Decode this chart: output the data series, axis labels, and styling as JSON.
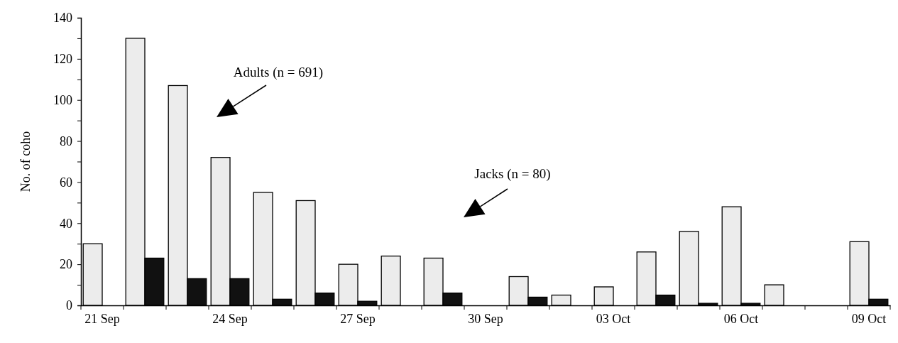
{
  "chart_data": {
    "type": "bar",
    "ylabel": "No. of coho",
    "categories": [
      "21 Sep",
      null,
      null,
      "24 Sep",
      null,
      null,
      "27 Sep",
      null,
      null,
      "30 Sep",
      null,
      null,
      "03 Oct",
      null,
      null,
      "06 Oct",
      null,
      null,
      "09 Oct"
    ],
    "series": [
      {
        "color": "#ececec",
        "values": [
          30,
          130,
          107,
          72,
          55,
          51,
          20,
          24,
          23,
          0,
          14,
          5,
          9,
          26,
          36,
          48,
          10,
          0,
          31
        ]
      },
      {
        "color": "#111111",
        "values": [
          0,
          23,
          13,
          13,
          3,
          6,
          2,
          0,
          6,
          0,
          4,
          0,
          0,
          5,
          1,
          1,
          0,
          0,
          3
        ]
      }
    ],
    "ylim": [
      0,
      140
    ],
    "yticks": [
      0,
      {
        "value": 10,
        "label": null
      },
      20,
      {
        "value": 30,
        "label": null
      },
      40,
      {
        "value": 50,
        "label": null
      },
      60,
      {
        "value": 70,
        "label": null
      },
      80,
      {
        "value": 90,
        "label": null
      },
      100,
      {
        "value": 110,
        "label": null
      },
      120,
      {
        "value": 130,
        "label": null
      },
      140
    ],
    "grid": false,
    "annotations": [
      "Adults (n = 691)",
      "Jacks (n = 80)"
    ]
  }
}
